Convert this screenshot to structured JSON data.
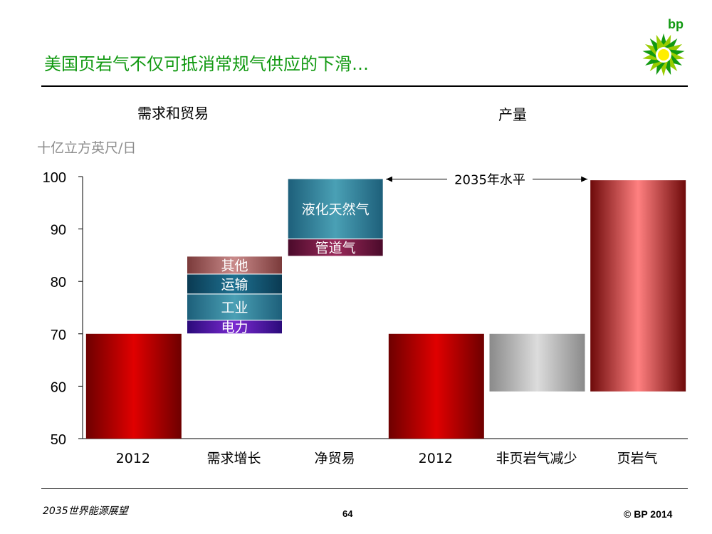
{
  "header": {
    "title": "美国页岩气不仅可抵消常规气供应的下滑…",
    "logo_text": "bp"
  },
  "sections": {
    "left": "需求和贸易",
    "right": "产量"
  },
  "unit_label": "十亿立方英尺/日",
  "footer": {
    "left": "2035世界能源展望",
    "page": "64",
    "right": "© BP 2014"
  },
  "colors": {
    "title": "#119911",
    "dark_red": "#c00000",
    "gray": "#a6a6a6",
    "pink": "#ff7f7f",
    "teal": "#2f7f9a",
    "maroon": "#7a1f3a",
    "purple": "#5a1aa0"
  },
  "chart_data": {
    "type": "bar",
    "subtype": "waterfall",
    "ylim": [
      50,
      100
    ],
    "yticks": [
      50,
      60,
      70,
      80,
      90,
      100
    ],
    "categories": [
      "2012",
      "需求增长",
      "净贸易",
      "2012",
      "非页岩气减少",
      "页岩气"
    ],
    "bars": [
      {
        "category": "2012",
        "low": 50,
        "high": 70,
        "style": "red"
      },
      {
        "category": "需求增长",
        "stack": [
          {
            "label": "电力",
            "low": 70,
            "high": 72.6,
            "style": "purple"
          },
          {
            "label": "工业",
            "low": 72.6,
            "high": 77.6,
            "style": "teal"
          },
          {
            "label": "运输",
            "low": 77.6,
            "high": 81.4,
            "style": "darkteal"
          },
          {
            "label": "其他",
            "low": 81.4,
            "high": 84.8,
            "style": "mauve"
          }
        ]
      },
      {
        "category": "净贸易",
        "stack": [
          {
            "label": "管道气",
            "low": 84.8,
            "high": 88.1,
            "style": "maroon"
          },
          {
            "label": "液化天然气",
            "low": 88.1,
            "high": 99.6,
            "style": "teal"
          }
        ]
      },
      {
        "category": "2012",
        "low": 50,
        "high": 70,
        "style": "red"
      },
      {
        "category": "非页岩气减少",
        "low": 59,
        "high": 70,
        "style": "gray"
      },
      {
        "category": "页岩气",
        "low": 59,
        "high": 99.3,
        "style": "pink"
      }
    ],
    "annotation": {
      "text": "2035年水平",
      "y": 99.5
    }
  }
}
